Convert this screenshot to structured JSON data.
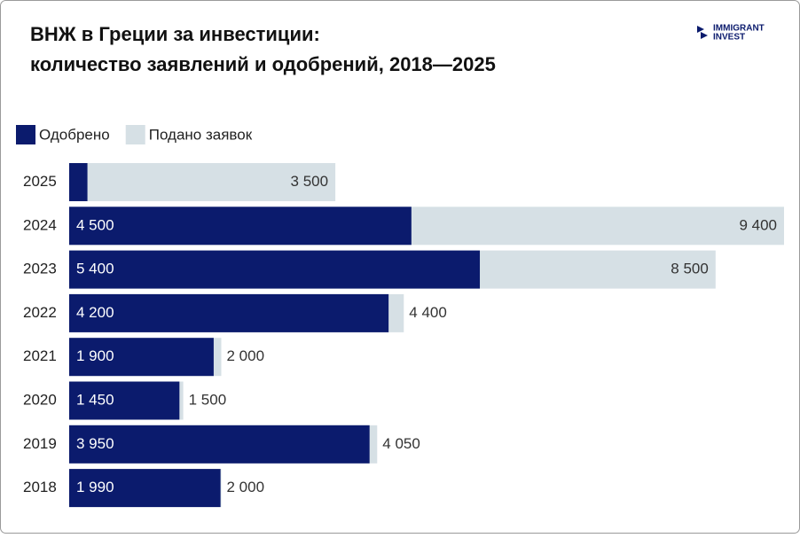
{
  "chart_data": {
    "type": "bar",
    "orientation": "horizontal",
    "overlap": true,
    "title": "ВНЖ в Греции за инвестиции: количество заявлений и одобрений, 2018—2025",
    "logo": [
      "IMMIGRANT",
      "INVEST"
    ],
    "categories": [
      "2025",
      "2024",
      "2023",
      "2022",
      "2021",
      "2020",
      "2019",
      "2018"
    ],
    "series": [
      {
        "name": "Одобрено",
        "color": "#0b1b6d",
        "label_color": "#ffffff",
        "values": [
          240,
          4500,
          5400,
          4200,
          1900,
          1450,
          3950,
          1990
        ],
        "value_labels": [
          null,
          "4 500",
          "5 400",
          "4 200",
          "1 900",
          "1 450",
          "3 950",
          "1 990"
        ]
      },
      {
        "name": "Подано заявок",
        "color": "#d6e0e5",
        "label_color": "#333333",
        "values": [
          3500,
          9400,
          8500,
          4400,
          2000,
          1500,
          4050,
          2000
        ],
        "value_labels": [
          "3 500",
          "9 400",
          "8 500",
          "4 400",
          "2 000",
          "1 500",
          "4 050",
          "2 000"
        ]
      }
    ],
    "xlim": [
      0,
      9400
    ],
    "legend": "top-left"
  }
}
